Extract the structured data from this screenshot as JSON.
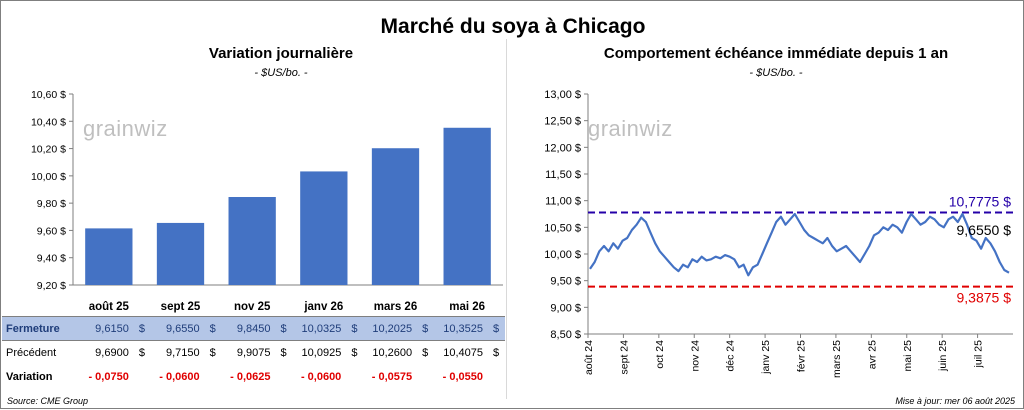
{
  "title": "Marché du soya à Chicago",
  "left_chart": {
    "subtitle": "Variation journalière",
    "unit": "- $US/bo. -",
    "watermark": "grainwiz"
  },
  "right_chart": {
    "subtitle": "Comportement  échéance immédiate depuis 1 an",
    "unit": "- $US/bo. -",
    "watermark": "grainwiz"
  },
  "table": {
    "rows": [
      {
        "label": "Fermeture",
        "values": [
          "9,6150",
          "9,6550",
          "9,8450",
          "10,0325",
          "10,2025",
          "10,3525"
        ]
      },
      {
        "label": "Précédent",
        "values": [
          "9,6900",
          "9,7150",
          "9,9075",
          "10,0925",
          "10,2600",
          "10,4075"
        ]
      },
      {
        "label": "Variation",
        "values": [
          "- 0,0750",
          "- 0,0600",
          "- 0,0625",
          "- 0,0600",
          "- 0,0575",
          "- 0,0550"
        ]
      }
    ],
    "currency": "$"
  },
  "footer": {
    "source": "Source: CME Group",
    "updated": "Mise à jour: mer 06 août 2025"
  },
  "chart_data": [
    {
      "type": "bar",
      "title": "Variation journalière",
      "ylabel": "$US/bo.",
      "categories": [
        "août 25",
        "sept 25",
        "nov 25",
        "janv 26",
        "mars 26",
        "mai 26"
      ],
      "values": [
        9.615,
        9.655,
        9.845,
        10.0325,
        10.2025,
        10.3525
      ],
      "ylim": [
        9.2,
        10.6
      ],
      "yticks": [
        9.2,
        9.4,
        9.6,
        9.8,
        10.0,
        10.2,
        10.4,
        10.6
      ],
      "ytick_labels": [
        "9,20 $",
        "9,40 $",
        "9,60 $",
        "9,80 $",
        "10,00 $",
        "10,20 $",
        "10,40 $",
        "10,60 $"
      ],
      "color": "#4472c4",
      "grid": false
    },
    {
      "type": "line",
      "title": "Comportement  échéance immédiate depuis 1 an",
      "ylabel": "$US/bo.",
      "x_labels": [
        "août 24",
        "sept 24",
        "oct 24",
        "nov 24",
        "déc 24",
        "janv 25",
        "févr 25",
        "mars 25",
        "avr 25",
        "mai 25",
        "juin 25",
        "juil 25"
      ],
      "ylim": [
        8.5,
        13.0
      ],
      "yticks": [
        8.5,
        9.0,
        9.5,
        10.0,
        10.5,
        11.0,
        11.5,
        12.0,
        12.5,
        13.0
      ],
      "ytick_labels": [
        "8,50 $",
        "9,00 $",
        "9,50 $",
        "10,00 $",
        "10,50 $",
        "11,00 $",
        "11,50 $",
        "12,00 $",
        "12,50 $",
        "13,00 $"
      ],
      "color": "#4472c4",
      "values": [
        9.72,
        9.85,
        10.05,
        10.15,
        10.05,
        10.2,
        10.1,
        10.25,
        10.3,
        10.45,
        10.55,
        10.68,
        10.6,
        10.4,
        10.2,
        10.05,
        9.95,
        9.85,
        9.75,
        9.68,
        9.8,
        9.75,
        9.9,
        9.85,
        9.95,
        9.88,
        9.9,
        9.95,
        9.92,
        9.98,
        9.95,
        9.9,
        9.75,
        9.8,
        9.6,
        9.75,
        9.8,
        10.0,
        10.2,
        10.4,
        10.6,
        10.7,
        10.55,
        10.65,
        10.75,
        10.6,
        10.45,
        10.35,
        10.3,
        10.25,
        10.2,
        10.3,
        10.15,
        10.05,
        10.1,
        10.15,
        10.05,
        9.95,
        9.85,
        10.0,
        10.15,
        10.35,
        10.4,
        10.5,
        10.45,
        10.55,
        10.5,
        10.4,
        10.6,
        10.75,
        10.65,
        10.55,
        10.6,
        10.7,
        10.65,
        10.55,
        10.5,
        10.65,
        10.7,
        10.6,
        10.75,
        10.55,
        10.3,
        10.25,
        10.1,
        10.3,
        10.2,
        10.05,
        9.85,
        9.7,
        9.65
      ],
      "hlines": [
        {
          "value": 10.7775,
          "label": "10,7775 $",
          "color": "#2400a8"
        },
        {
          "value": 9.3875,
          "label": "9,3875 $",
          "color": "#e00000"
        }
      ],
      "last_label": "9,6550 $",
      "grid": false
    }
  ]
}
